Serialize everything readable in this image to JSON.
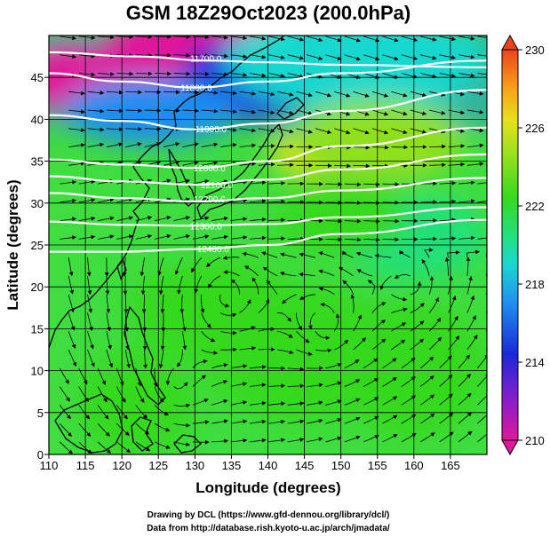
{
  "chart_data": {
    "type": "heatmap",
    "title": "GSM 18Z29Oct2023 (200.0hPa)",
    "xlabel": "Longitude (degrees)",
    "ylabel": "Latitude  (degrees)",
    "xlim": [
      110,
      170
    ],
    "ylim": [
      0,
      50
    ],
    "xticks": [
      "110",
      "115",
      "120",
      "125",
      "130",
      "135",
      "140",
      "145",
      "150",
      "155",
      "160",
      "165"
    ],
    "yticks": [
      "0",
      "5",
      "10",
      "15",
      "20",
      "25",
      "30",
      "35",
      "40",
      "45"
    ],
    "grid": true,
    "shaded_field": "temperature",
    "colorbar": {
      "min": 210,
      "max": 230,
      "ticks": [
        "210",
        "214",
        "218",
        "222",
        "226",
        "230"
      ],
      "colors": [
        "#e0179b",
        "#7a1fd0",
        "#1a28d8",
        "#1e8ef0",
        "#19d8cf",
        "#23e079",
        "#35d91f",
        "#8fe01c",
        "#e6e11b",
        "#f7a21a",
        "#f0431c"
      ]
    },
    "contours": [
      {
        "label": "11700.0",
        "lat": [
          48,
          47.5,
          47,
          46.8,
          46.5,
          46.2
        ],
        "lon": [
          110,
          122,
          132,
          140,
          150,
          170
        ]
      },
      {
        "label": "11800.0",
        "lat": [
          45.5,
          44.5,
          43.8,
          44.5,
          45.5,
          47
        ],
        "lon": [
          110,
          120,
          130,
          140,
          150,
          170
        ]
      },
      {
        "label": "11900.0",
        "lat": [
          40.5,
          39.8,
          38.8,
          39.5,
          41,
          43.5
        ],
        "lon": [
          110,
          120,
          130,
          140,
          150,
          170
        ]
      },
      {
        "label": "12000.0",
        "lat": [
          35.2,
          34.6,
          34.2,
          35,
          36.8,
          39
        ],
        "lon": [
          110,
          120,
          130,
          140,
          150,
          170
        ]
      },
      {
        "label": "12100.0",
        "lat": [
          33.2,
          32.6,
          32.2,
          32.8,
          34,
          35.8
        ],
        "lon": [
          110,
          120,
          130,
          140,
          150,
          170
        ]
      },
      {
        "label": "12200.0",
        "lat": [
          31.2,
          30.6,
          30.2,
          30.6,
          31.5,
          33
        ],
        "lon": [
          110,
          120,
          130,
          140,
          150,
          170
        ]
      },
      {
        "label": "12300.0",
        "lat": [
          27.8,
          27.4,
          27.3,
          27.5,
          28.3,
          29.5
        ],
        "lon": [
          110,
          120,
          130,
          140,
          150,
          170
        ]
      },
      {
        "label": "12400.0",
        "lat": [
          24.2,
          24.2,
          24.5,
          25,
          26.3,
          28
        ],
        "lon": [
          110,
          120,
          130,
          140,
          150,
          170
        ]
      }
    ],
    "contour_label_positions": [
      {
        "label": "11700.0",
        "lon": 131.5,
        "lat": 47.3
      },
      {
        "label": "11800.0",
        "lon": 130.2,
        "lat": 43.8
      },
      {
        "label": "11900.0",
        "lon": 132.2,
        "lat": 38.9
      },
      {
        "label": "12000.0",
        "lon": 132,
        "lat": 34.2
      },
      {
        "label": "12100.0",
        "lon": 133,
        "lat": 32.2
      },
      {
        "label": "12200.0",
        "lon": 132,
        "lat": 30.5
      },
      {
        "label": "12300.0",
        "lon": 131.5,
        "lat": 27.3
      },
      {
        "label": "12400.0",
        "lon": 132.5,
        "lat": 24.6
      }
    ],
    "temperature_blobs": [
      {
        "lon": 131,
        "lat": 47.5,
        "value": 210,
        "rlon": 14,
        "rlat": 6
      },
      {
        "lon": 113,
        "lat": 45,
        "value": 210.5,
        "rlon": 7,
        "rlat": 4
      },
      {
        "lon": 138,
        "lat": 45,
        "value": 213.5,
        "rlon": 10,
        "rlat": 5
      },
      {
        "lon": 124,
        "lat": 41,
        "value": 215.5,
        "rlon": 12,
        "rlat": 4
      },
      {
        "lon": 152,
        "lat": 47,
        "value": 217.5,
        "rlon": 18,
        "rlat": 6
      },
      {
        "lon": 146.5,
        "lat": 36,
        "value": 226.5,
        "rlon": 6,
        "rlat": 3
      },
      {
        "lon": 155,
        "lat": 37.5,
        "value": 223.5,
        "rlon": 12,
        "rlat": 5
      },
      {
        "lon": 160,
        "lat": 26,
        "value": 220.5,
        "rlon": 10,
        "rlat": 5
      },
      {
        "lon": 150,
        "lat": 28,
        "value": 221.5,
        "rlon": 9,
        "rlat": 4
      },
      {
        "lon": 133,
        "lat": 17,
        "value": 221.5,
        "rlon": 12,
        "rlat": 6
      },
      {
        "lon": 122,
        "lat": 6,
        "value": 222.5,
        "rlon": 8,
        "rlat": 6
      },
      {
        "lon": 145,
        "lat": 12,
        "value": 222,
        "rlon": 14,
        "rlat": 8
      },
      {
        "lon": 160,
        "lat": 10,
        "value": 221.5,
        "rlon": 10,
        "rlat": 8
      }
    ]
  },
  "credits": {
    "line1": "Drawing by DCL (https://www.gfd-dennou.org/library/dcl/)",
    "line2": "Data from http://database.rish.kyoto-u.ac.jp/arch/jmadata/"
  }
}
